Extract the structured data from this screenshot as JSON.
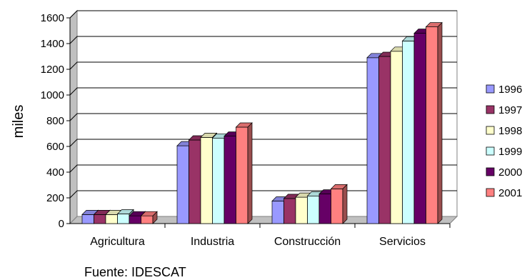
{
  "chart_data": {
    "type": "bar",
    "title": "",
    "xlabel": "",
    "ylabel": "miles",
    "ylim": [
      0,
      1600
    ],
    "yticks": [
      0,
      200,
      400,
      600,
      800,
      1000,
      1200,
      1400,
      1600
    ],
    "grid": true,
    "legend_position": "right",
    "style": "3d-clustered-column",
    "categories": [
      "Agricultura",
      "Industria",
      "Construcción",
      "Servicios"
    ],
    "series": [
      {
        "name": "1996",
        "color": "#9999ff",
        "values": [
          70,
          605,
          175,
          1290
        ]
      },
      {
        "name": "1997",
        "color": "#993366",
        "values": [
          70,
          650,
          195,
          1300
        ]
      },
      {
        "name": "1998",
        "color": "#ffffcc",
        "values": [
          70,
          670,
          205,
          1340
        ]
      },
      {
        "name": "1999",
        "color": "#ccffff",
        "values": [
          75,
          665,
          215,
          1420
        ]
      },
      {
        "name": "2000",
        "color": "#660066",
        "values": [
          60,
          680,
          230,
          1480
        ]
      },
      {
        "name": "2001",
        "color": "#ff8080",
        "values": [
          60,
          750,
          270,
          1530
        ]
      }
    ],
    "source": "Fuente: IDESCAT"
  }
}
